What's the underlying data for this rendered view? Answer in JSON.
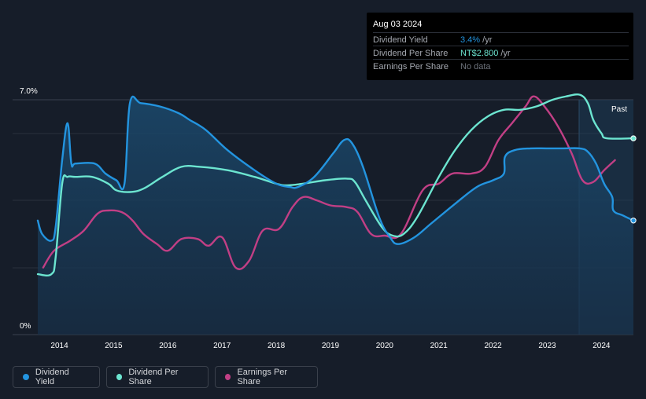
{
  "tooltip": {
    "date": "Aug 03 2024",
    "rows": [
      {
        "label": "Dividend Yield",
        "value": "3.4%",
        "unit": " /yr",
        "color": "#2394df"
      },
      {
        "label": "Dividend Per Share",
        "value": "NT$2.800",
        "unit": " /yr",
        "color": "#6ce5d0"
      },
      {
        "label": "Earnings Per Share",
        "value": "No data",
        "unit": "",
        "color": "#6d727b"
      }
    ]
  },
  "chart_data": {
    "type": "line",
    "y_top_label": "7.0%",
    "y_bottom_label": "0%",
    "x_ticks": [
      "2014",
      "2015",
      "2016",
      "2017",
      "2018",
      "2019",
      "2020",
      "2021",
      "2022",
      "2023",
      "2024"
    ],
    "past_label": "Past",
    "x_range": [
      2013.6,
      2024.59
    ],
    "y_range": [
      0,
      7.0
    ],
    "series": [
      {
        "name": "Dividend Yield",
        "color": "#2394df",
        "area": true,
        "points": [
          [
            2013.6,
            3.4
          ],
          [
            2013.68,
            3.0
          ],
          [
            2013.85,
            2.8
          ],
          [
            2013.93,
            3.2
          ],
          [
            2014.05,
            5.2
          ],
          [
            2014.15,
            6.3
          ],
          [
            2014.22,
            5.1
          ],
          [
            2014.3,
            5.1
          ],
          [
            2014.65,
            5.1
          ],
          [
            2014.85,
            4.8
          ],
          [
            2015.05,
            4.6
          ],
          [
            2015.2,
            4.5
          ],
          [
            2015.3,
            6.9
          ],
          [
            2015.5,
            6.9
          ],
          [
            2015.85,
            6.8
          ],
          [
            2016.2,
            6.6
          ],
          [
            2016.4,
            6.4
          ],
          [
            2016.7,
            6.1
          ],
          [
            2017.1,
            5.5
          ],
          [
            2017.6,
            4.9
          ],
          [
            2018.0,
            4.5
          ],
          [
            2018.25,
            4.4
          ],
          [
            2018.4,
            4.4
          ],
          [
            2018.7,
            4.7
          ],
          [
            2019.05,
            5.4
          ],
          [
            2019.25,
            5.8
          ],
          [
            2019.4,
            5.7
          ],
          [
            2019.6,
            5.0
          ],
          [
            2019.9,
            3.5
          ],
          [
            2020.1,
            2.9
          ],
          [
            2020.25,
            2.7
          ],
          [
            2020.55,
            2.9
          ],
          [
            2020.85,
            3.3
          ],
          [
            2021.3,
            3.9
          ],
          [
            2021.7,
            4.4
          ],
          [
            2022.0,
            4.6
          ],
          [
            2022.2,
            4.8
          ],
          [
            2022.22,
            5.3
          ],
          [
            2022.4,
            5.5
          ],
          [
            2022.7,
            5.55
          ],
          [
            2023.0,
            5.55
          ],
          [
            2023.3,
            5.55
          ],
          [
            2023.6,
            5.55
          ],
          [
            2023.75,
            5.45
          ],
          [
            2023.9,
            5.1
          ],
          [
            2024.05,
            4.5
          ],
          [
            2024.2,
            4.1
          ],
          [
            2024.22,
            3.7
          ],
          [
            2024.4,
            3.55
          ],
          [
            2024.59,
            3.4
          ]
        ]
      },
      {
        "name": "Dividend Per Share",
        "color": "#6ce5d0",
        "area": false,
        "points": [
          [
            2013.6,
            1.8
          ],
          [
            2013.85,
            1.8
          ],
          [
            2013.93,
            2.3
          ],
          [
            2014.05,
            4.5
          ],
          [
            2014.15,
            4.7
          ],
          [
            2014.3,
            4.7
          ],
          [
            2014.6,
            4.7
          ],
          [
            2014.9,
            4.5
          ],
          [
            2015.05,
            4.3
          ],
          [
            2015.3,
            4.25
          ],
          [
            2015.55,
            4.35
          ],
          [
            2015.9,
            4.7
          ],
          [
            2016.25,
            5.0
          ],
          [
            2016.6,
            5.0
          ],
          [
            2017.1,
            4.9
          ],
          [
            2017.6,
            4.7
          ],
          [
            2018.0,
            4.5
          ],
          [
            2018.2,
            4.45
          ],
          [
            2018.5,
            4.5
          ],
          [
            2018.9,
            4.6
          ],
          [
            2019.3,
            4.65
          ],
          [
            2019.45,
            4.55
          ],
          [
            2019.65,
            4.0
          ],
          [
            2019.95,
            3.2
          ],
          [
            2020.15,
            2.95
          ],
          [
            2020.35,
            3.0
          ],
          [
            2020.6,
            3.5
          ],
          [
            2021.0,
            4.7
          ],
          [
            2021.3,
            5.5
          ],
          [
            2021.6,
            6.1
          ],
          [
            2021.9,
            6.5
          ],
          [
            2022.2,
            6.7
          ],
          [
            2022.5,
            6.7
          ],
          [
            2022.8,
            6.8
          ],
          [
            2023.1,
            7.0
          ],
          [
            2023.35,
            7.1
          ],
          [
            2023.6,
            7.15
          ],
          [
            2023.75,
            6.9
          ],
          [
            2023.85,
            6.4
          ],
          [
            2024.0,
            6.0
          ],
          [
            2024.1,
            5.85
          ],
          [
            2024.59,
            5.85
          ]
        ]
      },
      {
        "name": "Earnings Per Share",
        "color": "#c13f85",
        "area": false,
        "points": [
          [
            2013.7,
            2.0
          ],
          [
            2013.9,
            2.5
          ],
          [
            2014.2,
            2.8
          ],
          [
            2014.45,
            3.1
          ],
          [
            2014.7,
            3.6
          ],
          [
            2014.9,
            3.7
          ],
          [
            2015.15,
            3.65
          ],
          [
            2015.35,
            3.4
          ],
          [
            2015.55,
            3.0
          ],
          [
            2015.8,
            2.7
          ],
          [
            2016.0,
            2.5
          ],
          [
            2016.25,
            2.85
          ],
          [
            2016.55,
            2.85
          ],
          [
            2016.75,
            2.65
          ],
          [
            2017.0,
            2.9
          ],
          [
            2017.25,
            2.0
          ],
          [
            2017.5,
            2.2
          ],
          [
            2017.75,
            3.1
          ],
          [
            2018.05,
            3.15
          ],
          [
            2018.3,
            3.8
          ],
          [
            2018.5,
            4.1
          ],
          [
            2018.75,
            4.0
          ],
          [
            2019.0,
            3.85
          ],
          [
            2019.3,
            3.8
          ],
          [
            2019.5,
            3.65
          ],
          [
            2019.75,
            3.0
          ],
          [
            2020.0,
            2.95
          ],
          [
            2020.3,
            3.0
          ],
          [
            2020.7,
            4.3
          ],
          [
            2021.0,
            4.5
          ],
          [
            2021.25,
            4.8
          ],
          [
            2021.6,
            4.8
          ],
          [
            2021.85,
            5.0
          ],
          [
            2022.1,
            5.8
          ],
          [
            2022.35,
            6.3
          ],
          [
            2022.6,
            6.8
          ],
          [
            2022.75,
            7.1
          ],
          [
            2022.95,
            6.8
          ],
          [
            2023.2,
            6.2
          ],
          [
            2023.45,
            5.4
          ],
          [
            2023.65,
            4.6
          ],
          [
            2023.85,
            4.55
          ],
          [
            2024.05,
            4.9
          ],
          [
            2024.25,
            5.2
          ]
        ]
      }
    ]
  },
  "legend": [
    {
      "label": "Dividend Yield",
      "color": "#2394df"
    },
    {
      "label": "Dividend Per Share",
      "color": "#6ce5d0"
    },
    {
      "label": "Earnings Per Share",
      "color": "#c13f85"
    }
  ]
}
